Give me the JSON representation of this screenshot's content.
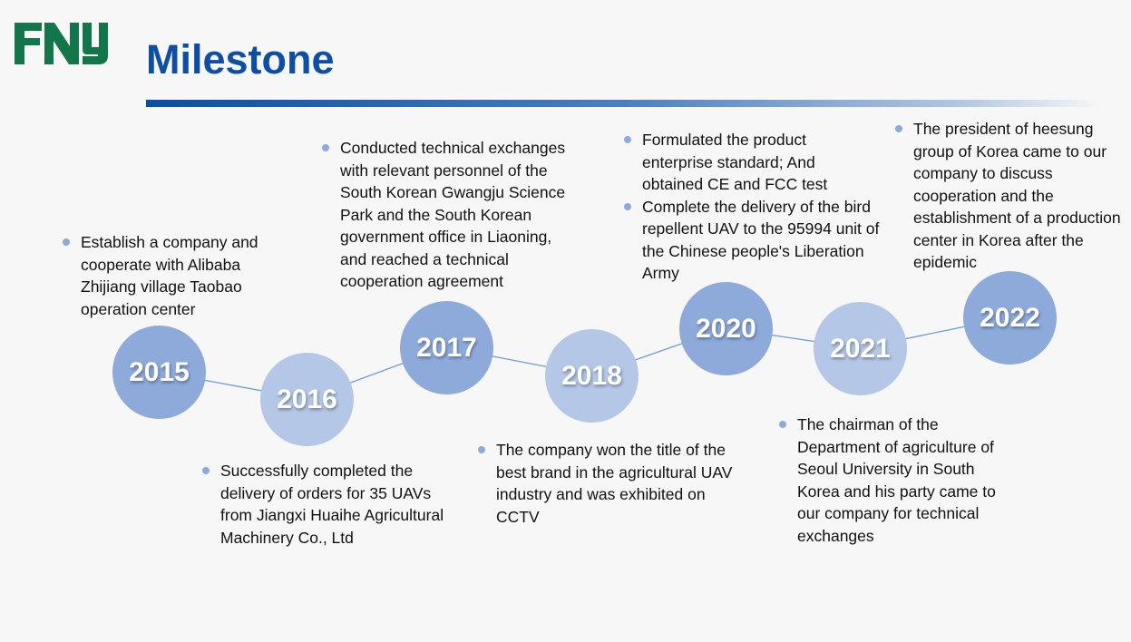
{
  "logo": {
    "text": "FNY",
    "color": "#13764a"
  },
  "title": "Milestone",
  "colors": {
    "title": "#0f4fa3",
    "circle_dark": "#8eaadb",
    "circle_light": "#b4c7e7",
    "line": "#6a9ad6"
  },
  "milestones": [
    {
      "year": "2015",
      "items": [
        "Establish a company and\n cooperate with Alibaba Zhijiang village Taobao operation center"
      ]
    },
    {
      "year": "2016",
      "items": [
        "Successfully completed the delivery of orders for 35 UAVs from Jiangxi Huaihe Agricultural Machinery Co., Ltd"
      ]
    },
    {
      "year": "2017",
      "items": [
        "Conducted technical exchanges with relevant personnel of the South Korean Gwangju Science Park and the South Korean government office in Liaoning, and reached a technical cooperation agreement"
      ]
    },
    {
      "year": "2018",
      "items": [
        "The company won the title of the best brand in the agricultural UAV industry and was exhibited on CCTV"
      ]
    },
    {
      "year": "2020",
      "items": [
        "Formulated the product enterprise standard; And obtained CE and FCC test",
        "Complete the delivery of the bird repellent UAV to the 95994 unit of the Chinese people's Liberation Army"
      ]
    },
    {
      "year": "2021",
      "items": [
        "The chairman of the Department of agriculture of Seoul University in South Korea and his party came to our company for technical exchanges"
      ]
    },
    {
      "year": "2022",
      "items": [
        "The president of heesung group of Korea came to our company to discuss cooperation and the establishment of a production center in Korea after the epidemic"
      ]
    }
  ]
}
